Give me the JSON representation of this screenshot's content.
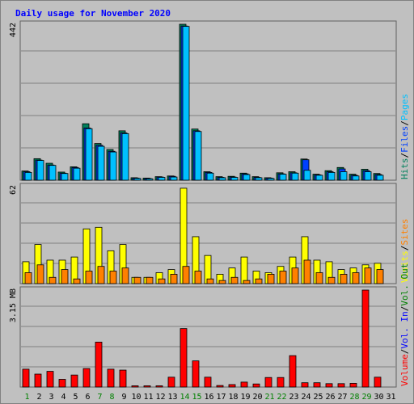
{
  "chart_data": [
    {
      "panel": "hits-files-pages",
      "type": "bar",
      "title": "Daily usage for November 2020",
      "ymax_label": "442",
      "ylim": [
        0,
        442
      ],
      "categories": [
        "1",
        "2",
        "3",
        "4",
        "5",
        "6",
        "7",
        "8",
        "9",
        "10",
        "11",
        "12",
        "13",
        "14",
        "15",
        "16",
        "17",
        "18",
        "19",
        "20",
        "21",
        "22",
        "23",
        "24",
        "25",
        "26",
        "27",
        "28",
        "29",
        "30",
        "31"
      ],
      "weekend_days": [
        "1",
        "7",
        "8",
        "14",
        "15",
        "21",
        "22",
        "28",
        "29"
      ],
      "series": [
        {
          "name": "Hits",
          "color": "#00805c",
          "values": [
            26,
            61,
            48,
            23,
            38,
            160,
            104,
            87,
            140,
            7,
            6,
            10,
            12,
            442,
            145,
            24,
            10,
            11,
            20,
            10,
            7,
            21,
            24,
            60,
            17,
            27,
            36,
            17,
            31,
            19,
            0
          ]
        },
        {
          "name": "Files",
          "color": "#0040ff",
          "values": [
            24,
            57,
            43,
            20,
            36,
            148,
            99,
            82,
            134,
            6,
            5,
            9,
            11,
            437,
            140,
            22,
            8,
            9,
            18,
            8,
            6,
            18,
            21,
            58,
            15,
            24,
            32,
            14,
            27,
            16,
            0
          ]
        },
        {
          "name": "Pages",
          "color": "#00c0ff",
          "values": [
            22,
            56,
            42,
            19,
            34,
            146,
            96,
            80,
            132,
            5,
            4,
            8,
            9,
            436,
            138,
            20,
            7,
            8,
            16,
            7,
            5,
            17,
            20,
            28,
            14,
            22,
            24,
            12,
            24,
            14,
            0
          ]
        }
      ],
      "legend_text": [
        "Hits",
        "/",
        "Files",
        "/",
        "Pages"
      ]
    },
    {
      "panel": "visits-sites",
      "type": "bar",
      "ymax_label": "62",
      "ylim": [
        0,
        62
      ],
      "series": [
        {
          "name": "Visits",
          "color": "#ffff00",
          "values": [
            14,
            25,
            15,
            15,
            17,
            35,
            36,
            21,
            25,
            4,
            4,
            7,
            9,
            61,
            30,
            18,
            6,
            10,
            17,
            8,
            7,
            11,
            17,
            30,
            15,
            14,
            9,
            10,
            12,
            13,
            0
          ]
        },
        {
          "name": "Sites",
          "color": "#ff8000",
          "values": [
            7,
            12,
            4,
            9,
            3,
            8,
            11,
            8,
            10,
            4,
            4,
            3,
            6,
            11,
            8,
            3,
            2,
            4,
            2,
            3,
            6,
            8,
            10,
            15,
            7,
            4,
            6,
            7,
            10,
            9,
            0
          ]
        }
      ],
      "legend_text": [
        "Visits",
        "/",
        "Sites"
      ]
    },
    {
      "panel": "volume",
      "type": "bar",
      "ymax_label": "3.15 MB",
      "ylim": [
        0,
        3.15
      ],
      "series": [
        {
          "name": "Volume",
          "color": "#ff0000",
          "values": [
            0.58,
            0.42,
            0.51,
            0.25,
            0.39,
            0.6,
            1.46,
            0.58,
            0.55,
            0.04,
            0.04,
            0.04,
            0.32,
            1.9,
            0.85,
            0.32,
            0.05,
            0.08,
            0.16,
            0.1,
            0.31,
            0.31,
            1.02,
            0.14,
            0.14,
            0.11,
            0.11,
            0.12,
            3.15,
            0.32,
            0
          ]
        },
        {
          "name": "Vol. In",
          "color": "#0000ff",
          "values": []
        },
        {
          "name": "Vol. Out",
          "color": "#008000",
          "values": []
        }
      ],
      "legend_text": [
        "Volume",
        "/",
        "Vol. In",
        "/",
        "Vol. Out"
      ]
    }
  ],
  "colors": {
    "title": "#0000ff",
    "weekday_label": "#000000",
    "weekend_label": "#008000",
    "panel_bg": "#c0c0c0",
    "grid": "#808080"
  }
}
